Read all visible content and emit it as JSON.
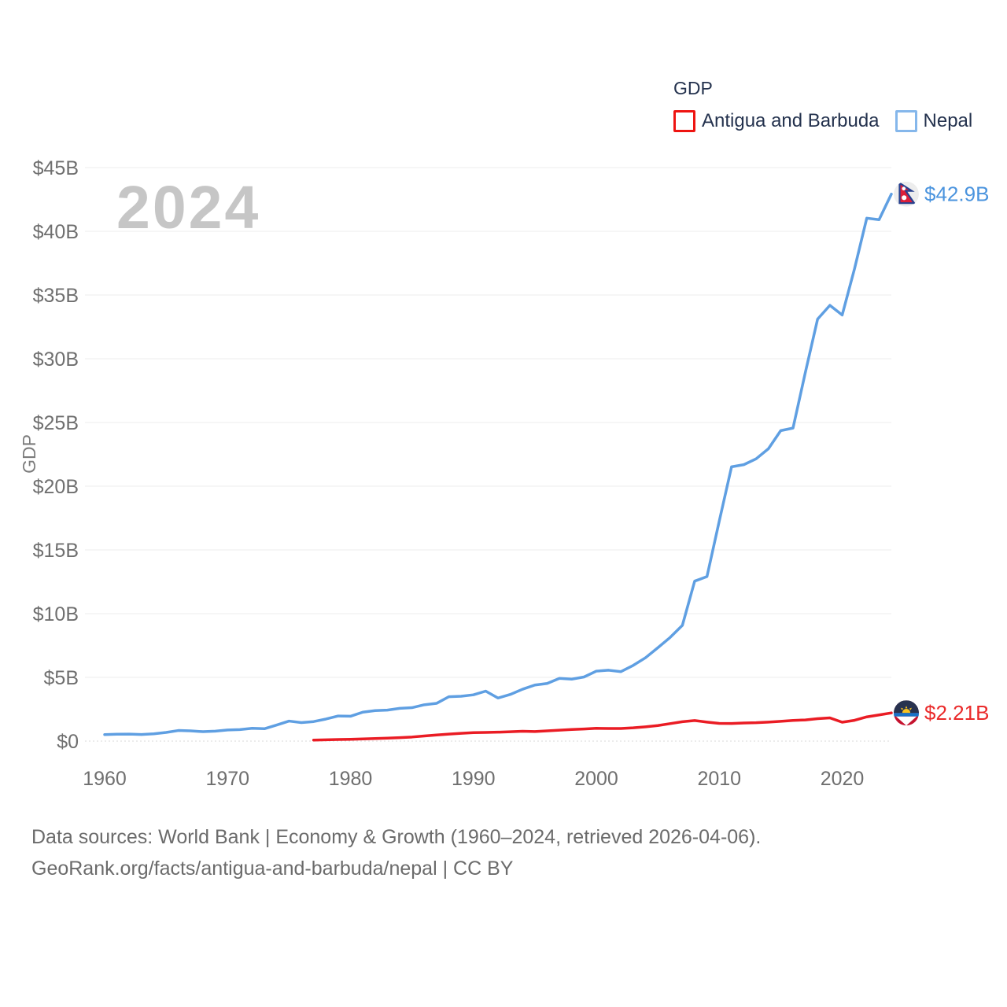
{
  "legend": {
    "title": "GDP",
    "items": [
      {
        "label": "Antigua and Barbuda",
        "color": "#ee1411"
      },
      {
        "label": "Nepal",
        "color": "#85b7eb"
      }
    ]
  },
  "watermark": "2024",
  "footer": {
    "line1": "Data sources: World Bank | Economy & Growth (1960–2024, retrieved 2026-04-06).",
    "line2": "GeoRank.org/facts/antigua-and-barbuda/nepal | CC BY"
  },
  "chart_data": {
    "type": "line",
    "title": "GDP",
    "ylabel": "GDP",
    "unit": "USD billions",
    "xlim": [
      1960,
      2024
    ],
    "ylim": [
      0,
      45
    ],
    "grid": true,
    "legend_position": "top-right",
    "yticks": [
      {
        "v": 0,
        "label": "$0"
      },
      {
        "v": 5,
        "label": "$5B"
      },
      {
        "v": 10,
        "label": "$10B"
      },
      {
        "v": 15,
        "label": "$15B"
      },
      {
        "v": 20,
        "label": "$20B"
      },
      {
        "v": 25,
        "label": "$25B"
      },
      {
        "v": 30,
        "label": "$30B"
      },
      {
        "v": 35,
        "label": "$35B"
      },
      {
        "v": 40,
        "label": "$40B"
      },
      {
        "v": 45,
        "label": "$45B"
      }
    ],
    "xticks": [
      {
        "v": 1960,
        "label": "1960"
      },
      {
        "v": 1970,
        "label": "1970"
      },
      {
        "v": 1980,
        "label": "1980"
      },
      {
        "v": 1990,
        "label": "1990"
      },
      {
        "v": 2000,
        "label": "2000"
      },
      {
        "v": 2010,
        "label": "2010"
      },
      {
        "v": 2020,
        "label": "2020"
      }
    ],
    "series": [
      {
        "name": "Antigua and Barbuda",
        "color": "#ea1c24",
        "label_color": "#ea2a2a",
        "end_label": "$2.21B",
        "marker": "antigua-and-barbuda-flag",
        "start_year": 1977,
        "values": [
          0.08,
          0.1,
          0.12,
          0.14,
          0.17,
          0.2,
          0.23,
          0.27,
          0.32,
          0.4,
          0.48,
          0.55,
          0.61,
          0.66,
          0.68,
          0.7,
          0.73,
          0.77,
          0.75,
          0.8,
          0.86,
          0.91,
          0.95,
          1.0,
          0.99,
          0.99,
          1.04,
          1.12,
          1.22,
          1.37,
          1.52,
          1.61,
          1.49,
          1.39,
          1.38,
          1.42,
          1.44,
          1.49,
          1.55,
          1.62,
          1.66,
          1.76,
          1.82,
          1.48,
          1.63,
          1.9,
          2.05,
          2.21
        ]
      },
      {
        "name": "Nepal",
        "color": "#5f9fe2",
        "label_color": "#4b94de",
        "end_label": "$42.9B",
        "marker": "nepal-flag",
        "start_year": 1960,
        "values": [
          0.51,
          0.54,
          0.55,
          0.52,
          0.57,
          0.68,
          0.83,
          0.8,
          0.74,
          0.78,
          0.87,
          0.9,
          1.0,
          0.97,
          1.26,
          1.57,
          1.45,
          1.53,
          1.73,
          1.97,
          1.95,
          2.27,
          2.39,
          2.43,
          2.57,
          2.62,
          2.85,
          2.96,
          3.48,
          3.52,
          3.63,
          3.92,
          3.38,
          3.66,
          4.07,
          4.4,
          4.52,
          4.92,
          4.86,
          5.03,
          5.49,
          5.56,
          5.45,
          5.94,
          6.54,
          7.32,
          8.13,
          9.08,
          12.55,
          12.91,
          17.26,
          21.52,
          21.69,
          22.15,
          22.94,
          24.36,
          24.56,
          28.91,
          33.11,
          34.19,
          33.43,
          37.05,
          41.03,
          40.91,
          42.92
        ]
      }
    ]
  }
}
